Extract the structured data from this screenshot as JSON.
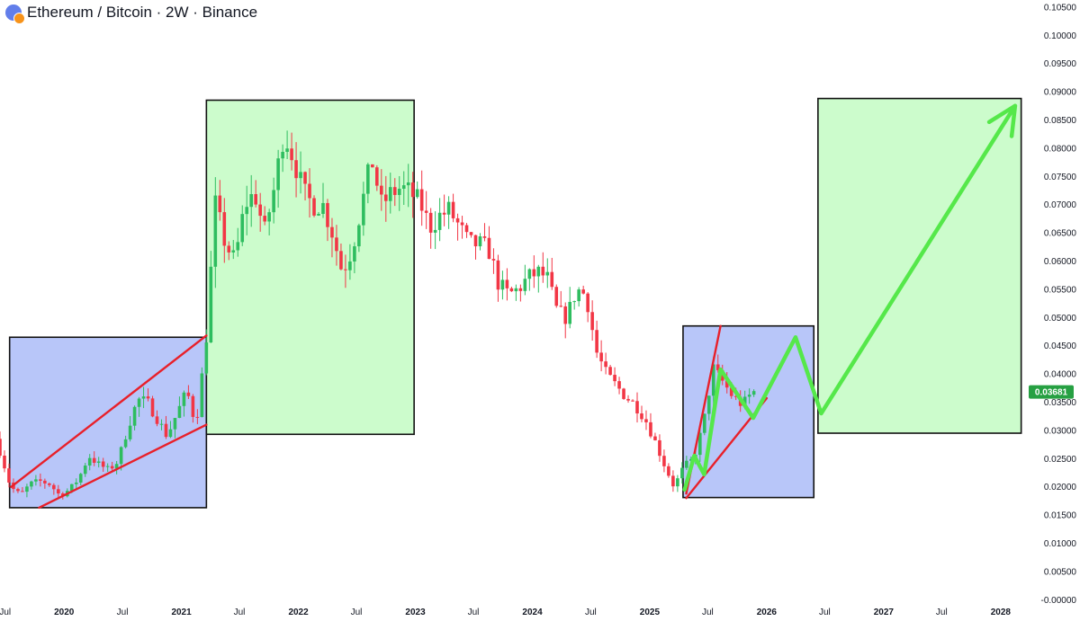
{
  "header": {
    "title": "Ethereum / Bitcoin · 2W · Binance"
  },
  "colors": {
    "up": "#2ebd5f",
    "down": "#f23645",
    "box_blue": "#b8c6f9",
    "box_green": "#ccfccc",
    "trend_line": "#e8202a",
    "projection": "#55e84a",
    "price_tag": "#26a042"
  },
  "chart_data": {
    "type": "candlestick",
    "timeframe": "2W",
    "y_ticks": [
      "0.10500",
      "0.10000",
      "0.09500",
      "0.09000",
      "0.08500",
      "0.08000",
      "0.07500",
      "0.07000",
      "0.06500",
      "0.06000",
      "0.05500",
      "0.05000",
      "0.04500",
      "0.04000",
      "0.03500",
      "0.03000",
      "0.02500",
      "0.02000",
      "0.01500",
      "0.01000",
      "0.00500",
      "-0.00000"
    ],
    "ylim": [
      -0.00075,
      0.10625
    ],
    "x_ticks": [
      {
        "label": "Jul",
        "date": "2019-07-01"
      },
      {
        "label": "2020",
        "date": "2020-01-01"
      },
      {
        "label": "Jul",
        "date": "2020-07-01"
      },
      {
        "label": "2021",
        "date": "2021-01-01"
      },
      {
        "label": "Jul",
        "date": "2021-07-01"
      },
      {
        "label": "2022",
        "date": "2022-01-01"
      },
      {
        "label": "Jul",
        "date": "2022-07-01"
      },
      {
        "label": "2023",
        "date": "2023-01-01"
      },
      {
        "label": "Jul",
        "date": "2023-07-01"
      },
      {
        "label": "2024",
        "date": "2024-01-01"
      },
      {
        "label": "Jul",
        "date": "2024-07-01"
      },
      {
        "label": "2025",
        "date": "2025-01-01"
      },
      {
        "label": "Jul",
        "date": "2025-07-01"
      },
      {
        "label": "2026",
        "date": "2026-01-01"
      },
      {
        "label": "Jul",
        "date": "2026-07-01"
      },
      {
        "label": "2027",
        "date": "2027-01-01"
      },
      {
        "label": "Jul",
        "date": "2027-07-01"
      },
      {
        "label": "2028",
        "date": "2028-01-01"
      }
    ],
    "xlim": [
      "2019-06-15",
      "2028-03-20"
    ],
    "current_price": "0.03681",
    "price_path": [
      [
        "2019-06-15",
        0.0285
      ],
      [
        "2019-07-01",
        0.026
      ],
      [
        "2019-08-01",
        0.02
      ],
      [
        "2019-09-01",
        0.0185
      ],
      [
        "2019-10-01",
        0.0205
      ],
      [
        "2019-11-01",
        0.021
      ],
      [
        "2019-12-01",
        0.0205
      ],
      [
        "2020-01-01",
        0.0185
      ],
      [
        "2020-02-01",
        0.0195
      ],
      [
        "2020-03-01",
        0.0215
      ],
      [
        "2020-04-01",
        0.0255
      ],
      [
        "2020-05-01",
        0.024
      ],
      [
        "2020-06-01",
        0.023
      ],
      [
        "2020-07-01",
        0.0245
      ],
      [
        "2020-08-01",
        0.0305
      ],
      [
        "2020-09-01",
        0.0355
      ],
      [
        "2020-10-01",
        0.035
      ],
      [
        "2020-11-01",
        0.032
      ],
      [
        "2020-12-01",
        0.029
      ],
      [
        "2021-01-01",
        0.033
      ],
      [
        "2021-02-01",
        0.037
      ],
      [
        "2021-03-01",
        0.031
      ],
      [
        "2021-04-01",
        0.045
      ],
      [
        "2021-05-01",
        0.07
      ],
      [
        "2021-06-01",
        0.063
      ],
      [
        "2021-07-01",
        0.06
      ],
      [
        "2021-08-01",
        0.07
      ],
      [
        "2021-09-01",
        0.072
      ],
      [
        "2021-10-01",
        0.065
      ],
      [
        "2021-11-01",
        0.073
      ],
      [
        "2021-12-01",
        0.083
      ],
      [
        "2022-01-01",
        0.078
      ],
      [
        "2022-02-01",
        0.072
      ],
      [
        "2022-03-01",
        0.07
      ],
      [
        "2022-04-01",
        0.07
      ],
      [
        "2022-05-01",
        0.065
      ],
      [
        "2022-06-01",
        0.058
      ],
      [
        "2022-07-01",
        0.062
      ],
      [
        "2022-08-01",
        0.07
      ],
      [
        "2022-09-01",
        0.078
      ],
      [
        "2022-10-01",
        0.07
      ],
      [
        "2022-11-01",
        0.072
      ],
      [
        "2022-12-01",
        0.073
      ],
      [
        "2023-01-01",
        0.072
      ],
      [
        "2023-02-01",
        0.07
      ],
      [
        "2023-03-01",
        0.066
      ],
      [
        "2023-04-01",
        0.068
      ],
      [
        "2023-05-01",
        0.069
      ],
      [
        "2023-06-01",
        0.066
      ],
      [
        "2023-07-01",
        0.063
      ],
      [
        "2023-08-01",
        0.063
      ],
      [
        "2023-09-01",
        0.062
      ],
      [
        "2023-10-01",
        0.056
      ],
      [
        "2023-11-01",
        0.054
      ],
      [
        "2023-12-01",
        0.055
      ],
      [
        "2024-01-01",
        0.057
      ],
      [
        "2024-02-01",
        0.058
      ],
      [
        "2024-03-01",
        0.057
      ],
      [
        "2024-04-01",
        0.051
      ],
      [
        "2024-05-01",
        0.05
      ],
      [
        "2024-06-01",
        0.055
      ],
      [
        "2024-07-01",
        0.054
      ],
      [
        "2024-08-01",
        0.044
      ],
      [
        "2024-09-01",
        0.04
      ],
      [
        "2024-10-01",
        0.038
      ],
      [
        "2024-11-01",
        0.036
      ],
      [
        "2024-12-01",
        0.0345
      ],
      [
        "2025-01-01",
        0.032
      ],
      [
        "2025-02-01",
        0.028
      ],
      [
        "2025-03-01",
        0.024
      ],
      [
        "2025-04-01",
        0.02
      ],
      [
        "2025-05-01",
        0.0235
      ],
      [
        "2025-06-01",
        0.025
      ],
      [
        "2025-07-01",
        0.031
      ],
      [
        "2025-08-01",
        0.041
      ],
      [
        "2025-09-01",
        0.0385
      ],
      [
        "2025-10-01",
        0.036
      ],
      [
        "2025-11-01",
        0.0345
      ],
      [
        "2025-12-01",
        0.0368
      ]
    ],
    "zones": [
      {
        "type": "accumulation",
        "from": "2019-07-15",
        "to": "2021-03-20",
        "low": 0.0163,
        "high": 0.0465
      },
      {
        "type": "expansion",
        "from": "2021-03-20",
        "to": "2022-12-28",
        "low": 0.0293,
        "high": 0.0885
      },
      {
        "type": "accumulation",
        "from": "2025-04-15",
        "to": "2026-05-28",
        "low": 0.0181,
        "high": 0.0485
      },
      {
        "type": "expansion",
        "from": "2026-06-10",
        "to": "2028-03-05",
        "low": 0.0295,
        "high": 0.0888
      }
    ],
    "trend_lines": [
      {
        "from": [
          "2019-07-20",
          0.02
        ],
        "to": [
          "2021-03-20",
          0.0468
        ]
      },
      {
        "from": [
          "2019-10-15",
          0.0163
        ],
        "to": [
          "2021-03-20",
          0.031
        ]
      },
      {
        "from": [
          "2025-04-25",
          0.0188
        ],
        "to": [
          "2025-08-10",
          0.0485
        ]
      },
      {
        "from": [
          "2025-04-25",
          0.018
        ],
        "to": [
          "2026-01-01",
          0.0357
        ]
      }
    ],
    "projection": [
      [
        "2025-04-20",
        0.0195
      ],
      [
        "2025-05-20",
        0.0255
      ],
      [
        "2025-06-20",
        0.0222
      ],
      [
        "2025-08-10",
        0.0408
      ],
      [
        "2025-11-20",
        0.0322
      ],
      [
        "2026-04-01",
        0.0465
      ],
      [
        "2026-06-20",
        0.033
      ],
      [
        "2028-02-15",
        0.0875
      ]
    ]
  }
}
